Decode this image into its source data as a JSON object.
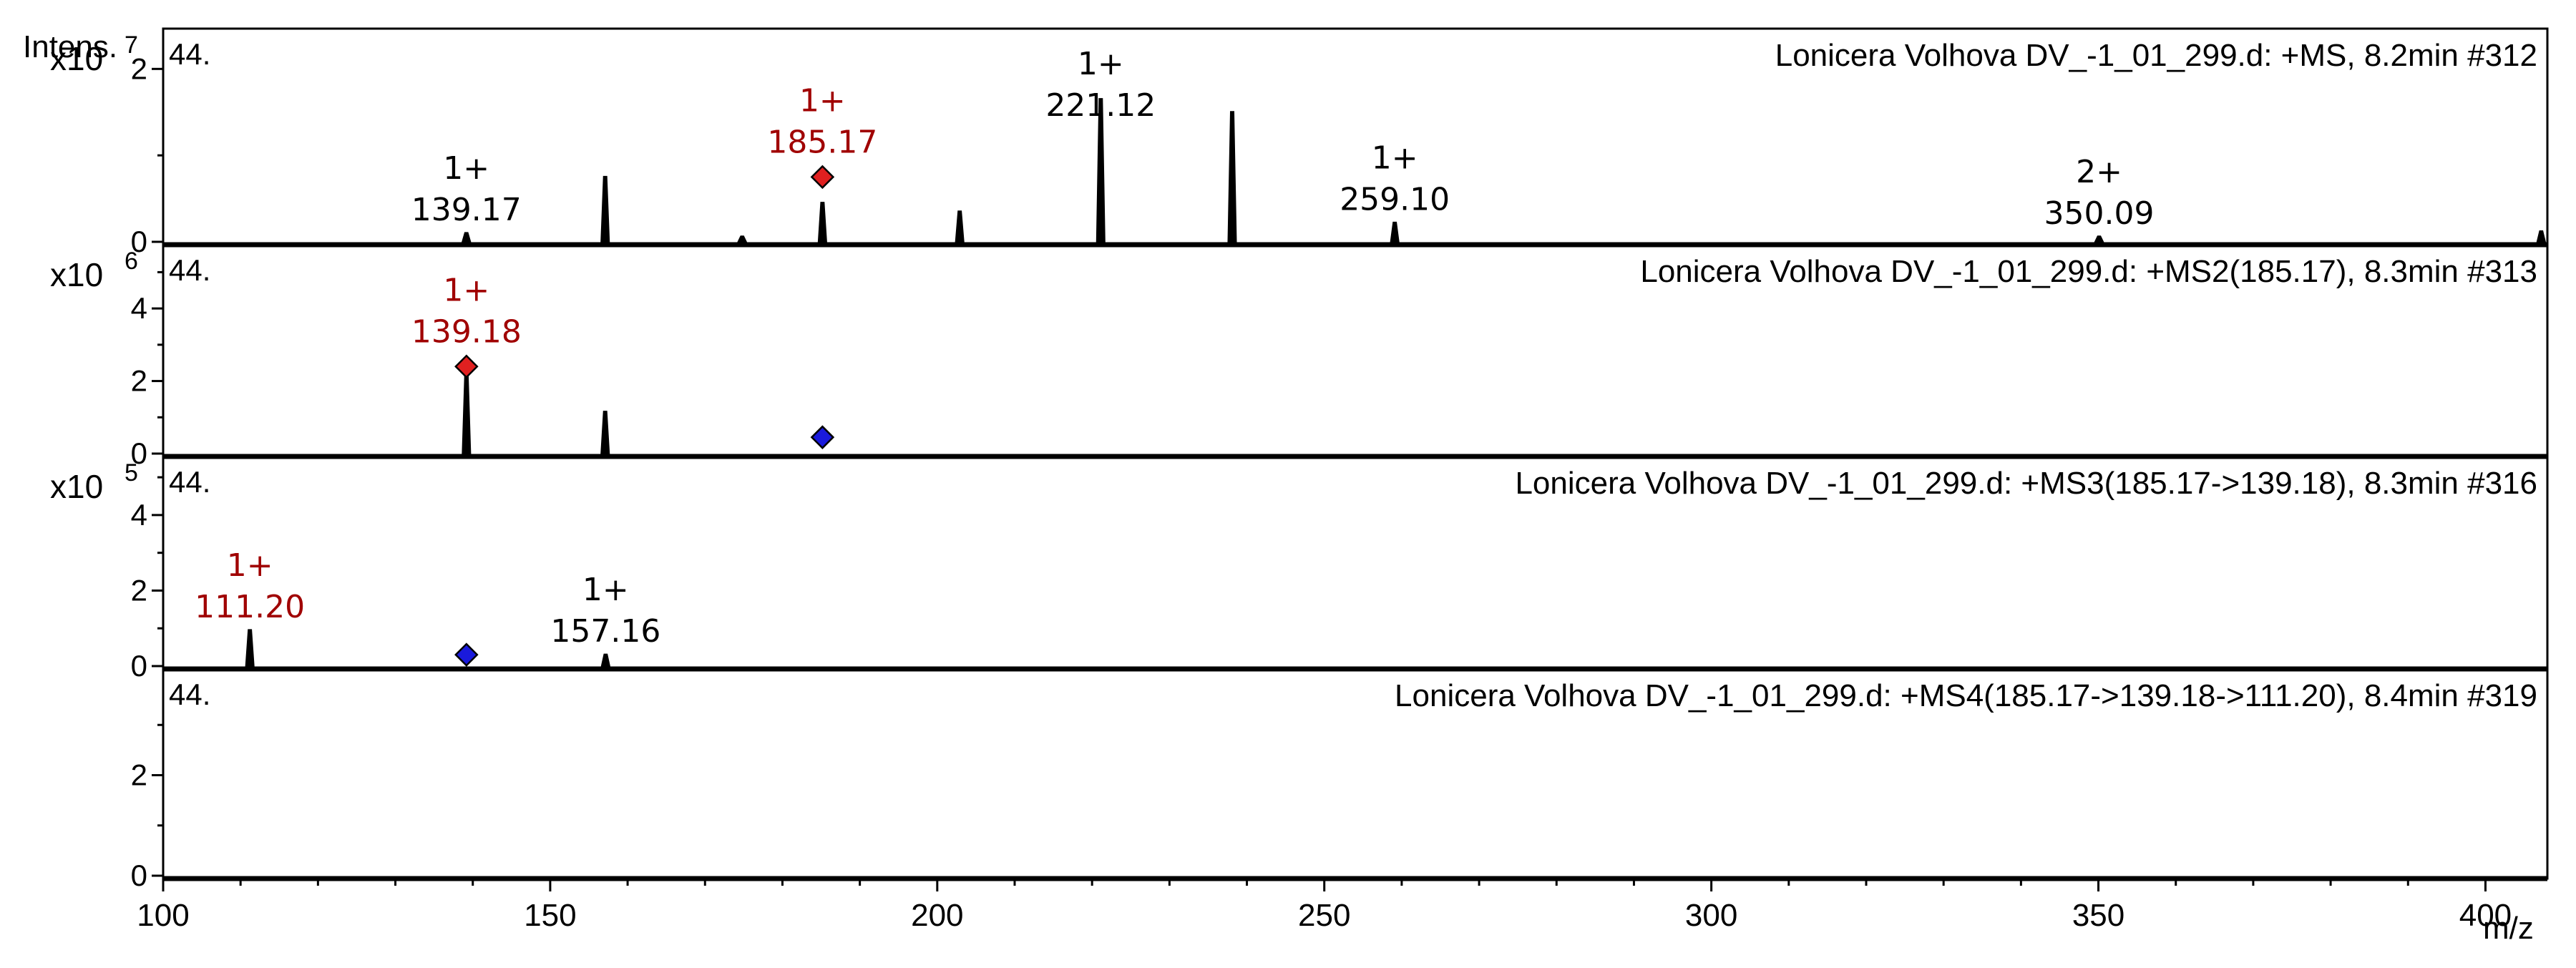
{
  "chart_data": {
    "type": "line",
    "y_axis_label": "Intens.",
    "x_axis_label": "m/z",
    "xlim": [
      100,
      408
    ],
    "x_ticks": [
      100,
      150,
      200,
      250,
      300,
      350,
      400
    ],
    "colors": {
      "highlight_label": "#a00000",
      "precursor_marker": "#e02020",
      "isolated_marker": "#1a1adc",
      "trace": "#000000"
    },
    "panels": [
      {
        "index_label": "44.",
        "title": "Lonicera Volhova DV_-1_01_299.d: +MS, 8.2min #312",
        "multiplier_base": "x10",
        "multiplier_exp": "7",
        "ylim": [
          0,
          2.4
        ],
        "y_ticks": [
          0,
          2
        ],
        "peaks": [
          {
            "mz": 139.17,
            "intensity": 0.1
          },
          {
            "mz": 157.1,
            "intensity": 0.75
          },
          {
            "mz": 174.8,
            "intensity": 0.06
          },
          {
            "mz": 185.17,
            "intensity": 0.45
          },
          {
            "mz": 202.9,
            "intensity": 0.35
          },
          {
            "mz": 221.12,
            "intensity": 1.65
          },
          {
            "mz": 238.1,
            "intensity": 1.5
          },
          {
            "mz": 259.1,
            "intensity": 0.22
          },
          {
            "mz": 350.09,
            "intensity": 0.06
          },
          {
            "mz": 407.2,
            "intensity": 0.12
          }
        ],
        "labels": [
          {
            "mz": 139.17,
            "charge": "1+",
            "value": "139.17",
            "highlight": false
          },
          {
            "mz": 185.17,
            "charge": "1+",
            "value": "185.17",
            "highlight": true
          },
          {
            "mz": 221.12,
            "charge": "1+",
            "value": "221.12",
            "highlight": false
          },
          {
            "mz": 259.1,
            "charge": "1+",
            "value": "259.10",
            "highlight": false
          },
          {
            "mz": 350.09,
            "charge": "2+",
            "value": "350.09",
            "highlight": false
          }
        ],
        "markers": [
          {
            "mz": 185.17,
            "intensity": 0.75,
            "type": "precursor"
          }
        ]
      },
      {
        "index_label": "44.",
        "title": "Lonicera Volhova DV_-1_01_299.d: +MS2(185.17), 8.3min #313",
        "multiplier_base": "x10",
        "multiplier_exp": "6",
        "ylim": [
          0,
          5.6
        ],
        "y_ticks": [
          0,
          2,
          4
        ],
        "peaks": [
          {
            "mz": 139.18,
            "intensity": 2.2
          },
          {
            "mz": 157.1,
            "intensity": 1.15
          }
        ],
        "labels": [
          {
            "mz": 139.18,
            "charge": "1+",
            "value": "139.18",
            "highlight": true
          }
        ],
        "markers": [
          {
            "mz": 139.18,
            "intensity": 2.4,
            "type": "precursor"
          },
          {
            "mz": 185.17,
            "intensity": 0.45,
            "type": "isolated"
          }
        ]
      },
      {
        "index_label": "44.",
        "title": "Lonicera Volhova DV_-1_01_299.d: +MS3(185.17->139.18), 8.3min #316",
        "multiplier_base": "x10",
        "multiplier_exp": "5",
        "ylim": [
          0,
          5.4
        ],
        "y_ticks": [
          0,
          2,
          4
        ],
        "peaks": [
          {
            "mz": 111.2,
            "intensity": 0.95
          },
          {
            "mz": 157.16,
            "intensity": 0.3
          }
        ],
        "labels": [
          {
            "mz": 111.2,
            "charge": "1+",
            "value": "111.20",
            "highlight": true
          },
          {
            "mz": 157.16,
            "charge": "1+",
            "value": "157.16",
            "highlight": false
          }
        ],
        "markers": [
          {
            "mz": 139.18,
            "intensity": 0.3,
            "type": "isolated"
          }
        ]
      },
      {
        "index_label": "44.",
        "title": "Lonicera Volhova DV_-1_01_299.d: +MS4(185.17->139.18->111.20), 8.4min #319",
        "multiplier_base": "",
        "multiplier_exp": "",
        "ylim": [
          0,
          4
        ],
        "y_ticks": [
          0,
          2
        ],
        "peaks": [],
        "labels": [],
        "markers": []
      }
    ]
  }
}
